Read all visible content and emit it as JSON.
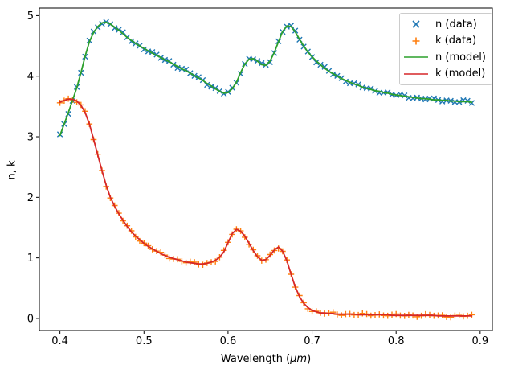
{
  "chart_data": {
    "type": "line",
    "title": "",
    "xlabel": "Wavelength (μm)",
    "xlabel_prefix": "Wavelength (",
    "xlabel_unit": "μm",
    "xlabel_suffix": ")",
    "ylabel": "n, k",
    "grid": false,
    "legend_position": "upper right",
    "xlim": [
      0.3755,
      0.9145
    ],
    "ylim": [
      -0.2,
      5.125
    ],
    "xticks": [
      0.4,
      0.5,
      0.6,
      0.7,
      0.8,
      0.9
    ],
    "xtick_labels": [
      "0.4",
      "0.5",
      "0.6",
      "0.7",
      "0.8",
      "0.9"
    ],
    "yticks": [
      0,
      1,
      2,
      3,
      4,
      5
    ],
    "ytick_labels": [
      "0",
      "1",
      "2",
      "3",
      "4",
      "5"
    ],
    "series": [
      {
        "label": "n (data)",
        "kind": "marker",
        "marker": "x",
        "color": "#1f77b4",
        "y_key": "n"
      },
      {
        "label": "k (data)",
        "kind": "marker",
        "marker": "+",
        "color": "#ff7f0e",
        "y_key": "k"
      },
      {
        "label": "n (model)",
        "kind": "line",
        "marker": null,
        "color": "#2ca02c",
        "y_key": "n"
      },
      {
        "label": "k (model)",
        "kind": "line",
        "marker": null,
        "color": "#d62728",
        "y_key": "k"
      }
    ],
    "x": [
      0.4,
      0.405,
      0.41,
      0.415,
      0.42,
      0.425,
      0.43,
      0.435,
      0.44,
      0.445,
      0.45,
      0.455,
      0.46,
      0.465,
      0.47,
      0.475,
      0.48,
      0.485,
      0.49,
      0.495,
      0.5,
      0.505,
      0.51,
      0.515,
      0.52,
      0.525,
      0.53,
      0.535,
      0.54,
      0.545,
      0.55,
      0.555,
      0.56,
      0.565,
      0.57,
      0.575,
      0.58,
      0.585,
      0.59,
      0.595,
      0.6,
      0.605,
      0.61,
      0.615,
      0.62,
      0.625,
      0.63,
      0.635,
      0.64,
      0.645,
      0.65,
      0.655,
      0.66,
      0.665,
      0.67,
      0.675,
      0.68,
      0.685,
      0.69,
      0.695,
      0.7,
      0.705,
      0.71,
      0.715,
      0.72,
      0.725,
      0.73,
      0.735,
      0.74,
      0.745,
      0.75,
      0.755,
      0.76,
      0.765,
      0.77,
      0.775,
      0.78,
      0.785,
      0.79,
      0.795,
      0.8,
      0.805,
      0.81,
      0.815,
      0.82,
      0.825,
      0.83,
      0.835,
      0.84,
      0.845,
      0.85,
      0.855,
      0.86,
      0.865,
      0.87,
      0.875,
      0.88,
      0.885,
      0.89
    ],
    "y": {
      "n": [
        3.02,
        3.21,
        3.4,
        3.6,
        3.81,
        4.06,
        4.33,
        4.57,
        4.72,
        4.82,
        4.88,
        4.89,
        4.86,
        4.81,
        4.76,
        4.7,
        4.64,
        4.59,
        4.54,
        4.5,
        4.46,
        4.42,
        4.38,
        4.34,
        4.31,
        4.27,
        4.24,
        4.2,
        4.16,
        4.12,
        4.09,
        4.05,
        4.01,
        3.97,
        3.93,
        3.88,
        3.84,
        3.79,
        3.75,
        3.72,
        3.73,
        3.79,
        3.9,
        4.06,
        4.2,
        4.28,
        4.29,
        4.25,
        4.19,
        4.18,
        4.25,
        4.39,
        4.57,
        4.74,
        4.83,
        4.82,
        4.73,
        4.61,
        4.5,
        4.4,
        4.32,
        4.25,
        4.19,
        4.13,
        4.08,
        4.04,
        4.0,
        3.96,
        3.93,
        3.9,
        3.87,
        3.85,
        3.82,
        3.8,
        3.78,
        3.76,
        3.75,
        3.73,
        3.72,
        3.7,
        3.69,
        3.68,
        3.67,
        3.66,
        3.65,
        3.64,
        3.63,
        3.63,
        3.62,
        3.61,
        3.61,
        3.6,
        3.6,
        3.59,
        3.59,
        3.58,
        3.58,
        3.58,
        3.57
      ],
      "k": [
        3.57,
        3.6,
        3.62,
        3.62,
        3.59,
        3.52,
        3.4,
        3.21,
        2.96,
        2.7,
        2.44,
        2.2,
        2.0,
        1.85,
        1.73,
        1.62,
        1.52,
        1.43,
        1.36,
        1.3,
        1.24,
        1.19,
        1.15,
        1.11,
        1.07,
        1.04,
        1.01,
        0.99,
        0.97,
        0.95,
        0.93,
        0.92,
        0.91,
        0.9,
        0.9,
        0.91,
        0.93,
        0.96,
        1.01,
        1.1,
        1.25,
        1.4,
        1.47,
        1.44,
        1.36,
        1.24,
        1.12,
        1.02,
        0.96,
        0.97,
        1.04,
        1.13,
        1.18,
        1.11,
        0.95,
        0.73,
        0.52,
        0.36,
        0.25,
        0.18,
        0.13,
        0.11,
        0.09,
        0.09,
        0.08,
        0.08,
        0.07,
        0.07,
        0.07,
        0.07,
        0.07,
        0.06,
        0.06,
        0.06,
        0.06,
        0.06,
        0.06,
        0.06,
        0.06,
        0.05,
        0.05,
        0.05,
        0.05,
        0.05,
        0.05,
        0.05,
        0.05,
        0.05,
        0.05,
        0.05,
        0.04,
        0.04,
        0.04,
        0.04,
        0.04,
        0.04,
        0.04,
        0.04,
        0.04
      ]
    }
  }
}
